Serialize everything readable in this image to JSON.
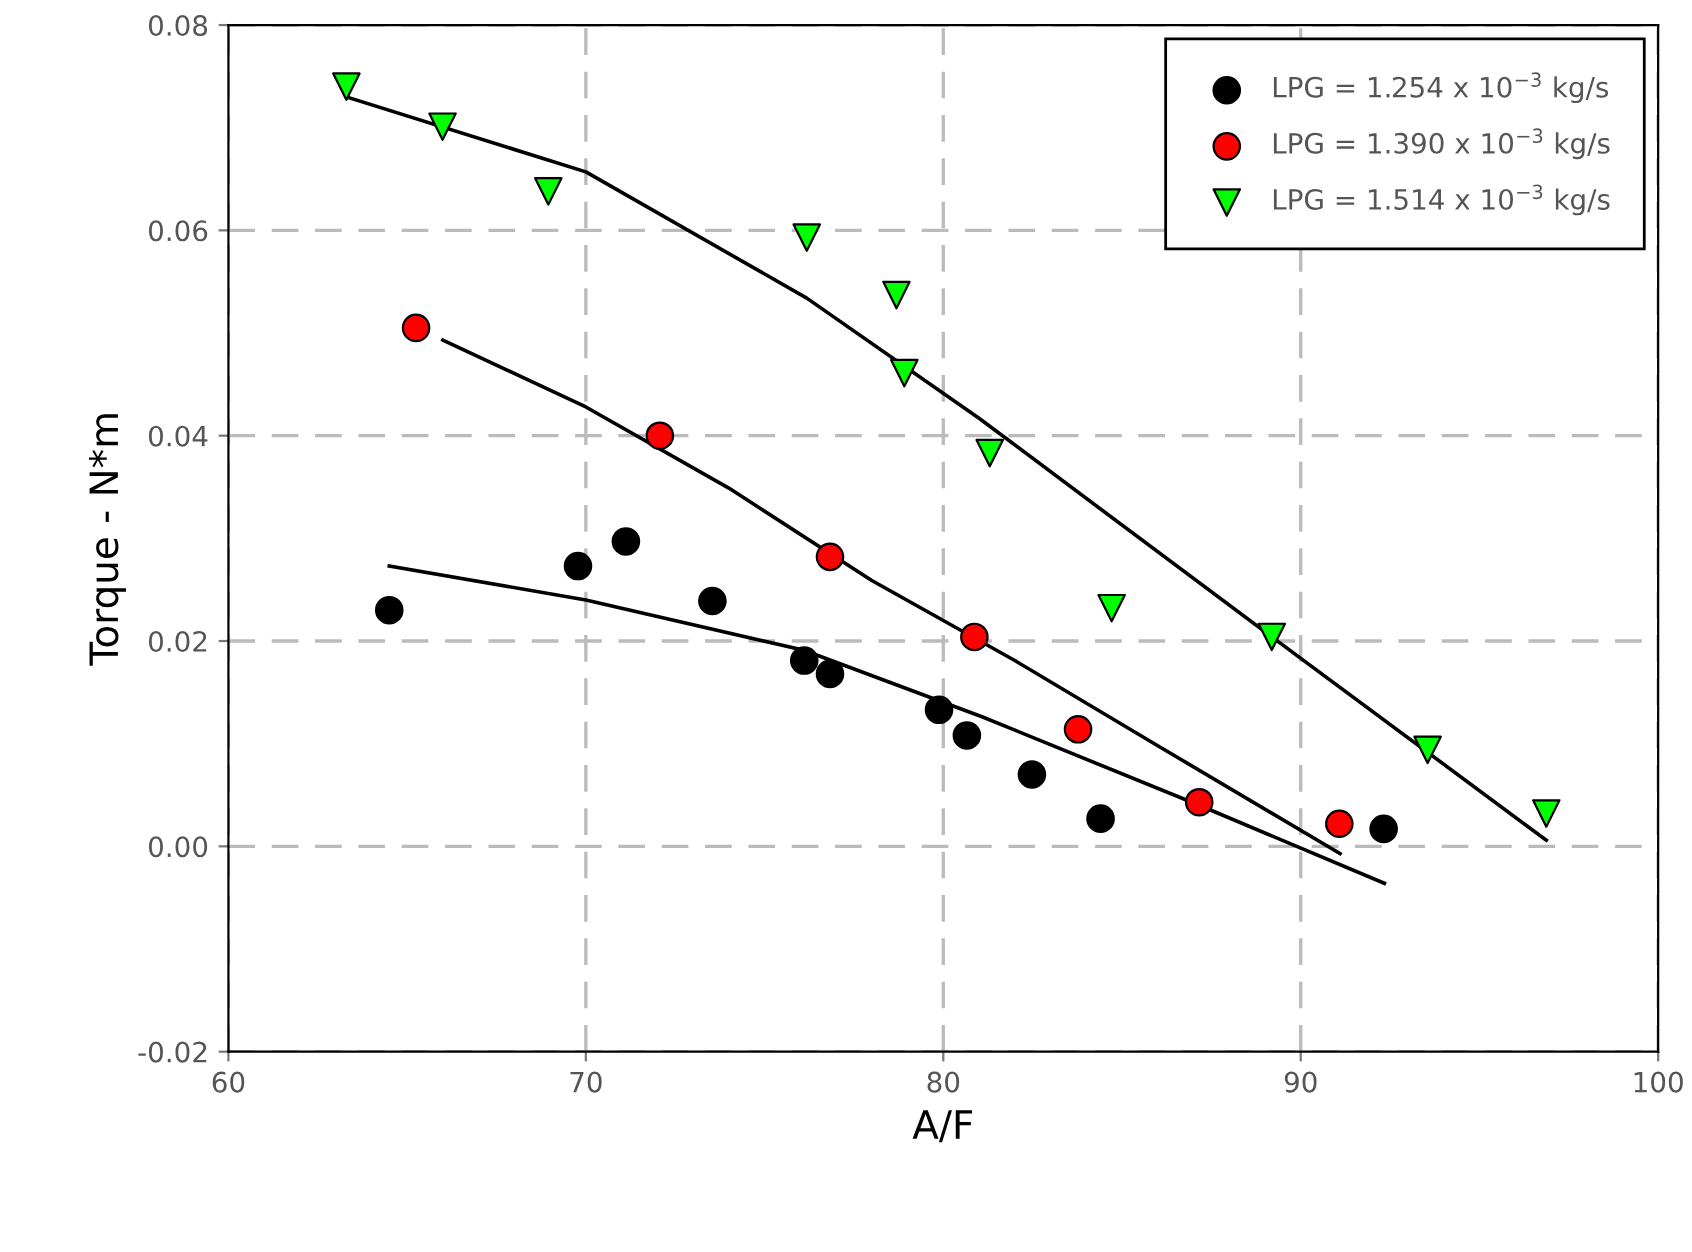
{
  "chart_data": {
    "type": "scatter",
    "xlabel": "A/F",
    "ylabel": "Torque - N*m",
    "xlim": [
      60,
      100
    ],
    "ylim": [
      -0.02,
      0.08
    ],
    "xticks": [
      60,
      70,
      80,
      90,
      100
    ],
    "yticks": [
      -0.02,
      {
        "value": 0,
        "label": "0.00"
      },
      0.02,
      0.04,
      0.06,
      0.08
    ],
    "grid": true,
    "legend": "top right",
    "series": [
      {
        "name": "LPG = 1.254 x 10$^{−3}$ kg/s",
        "color": "#000000",
        "marker": "circle",
        "x": [
          64.5,
          69.78,
          71.12,
          73.54,
          76.11,
          76.83,
          79.88,
          80.66,
          82.48,
          84.4,
          92.32
        ],
        "values": [
          0.023,
          0.0273,
          0.0297,
          0.0239,
          0.0181,
          0.0168,
          0.0133,
          0.0108,
          0.007,
          0.0027,
          0.0017
        ]
      },
      {
        "name": "LPG = 1.390 x 10$^{−3}$ kg/s",
        "color": "#ff0000",
        "marker": "circle",
        "x": [
          65.25,
          72.07,
          76.83,
          80.87,
          83.77,
          87.16,
          91.08
        ],
        "values": [
          0.0505,
          0.04,
          0.0282,
          0.0204,
          0.0114,
          0.0043,
          0.0022
        ]
      },
      {
        "name": "LPG = 1.514 x 10$^{−3}$ kg/s",
        "color": "#00ff00",
        "marker": "triangle",
        "x": [
          63.3,
          65.99,
          68.95,
          76.18,
          78.69,
          78.91,
          81.3,
          84.71,
          89.19,
          93.55,
          96.87
        ],
        "values": [
          0.074,
          0.0701,
          0.0638,
          0.0593,
          0.0537,
          0.0461,
          0.0383,
          0.0232,
          0.0204,
          0.0094,
          0.0032
        ]
      },
      {
        "type": "line",
        "color": "#000000",
        "marker": "none",
        "line_style": "solid",
        "x": [
          64.5,
          70,
          76.1,
          81.1,
          87.16,
          92.34
        ],
        "values": [
          0.0273,
          0.024,
          0.0191,
          0.0126,
          0.004,
          -0.0036
        ]
      },
      {
        "type": "line",
        "color": "#000000",
        "marker": "none",
        "line_style": "solid",
        "x": [
          66,
          70,
          74,
          78,
          82,
          86,
          91.1
        ],
        "values": [
          0.0493,
          0.0428,
          0.0349,
          0.0259,
          0.0181,
          0.0098,
          -0.0007
        ]
      },
      {
        "type": "line",
        "color": "#000000",
        "marker": "none",
        "line_style": "solid",
        "x": [
          63.3,
          70,
          76.18,
          81.0,
          89.19,
          96.87
        ],
        "values": [
          0.073,
          0.0657,
          0.0534,
          0.0417,
          0.0204,
          0.0006
        ]
      }
    ]
  }
}
